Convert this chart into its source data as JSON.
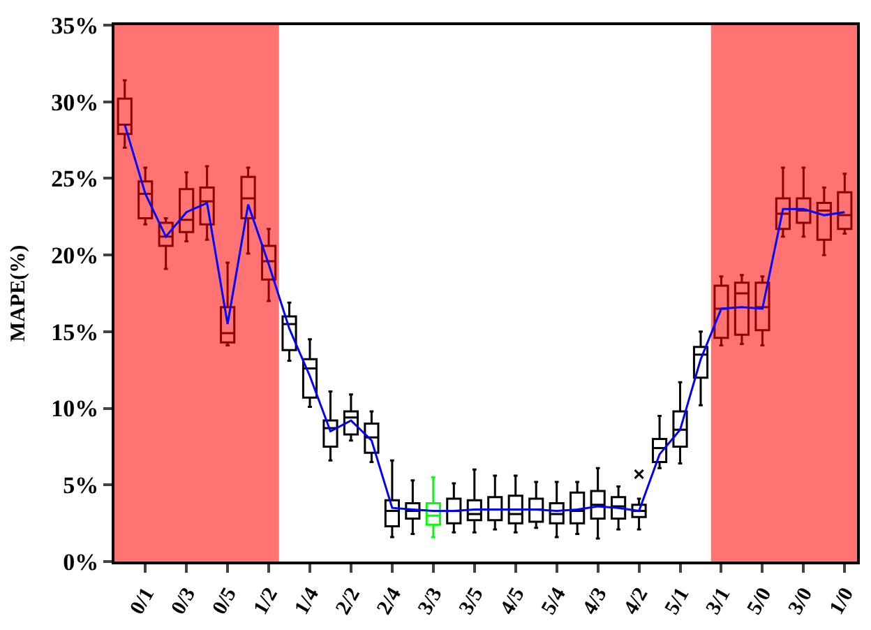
{
  "chart_data": {
    "type": "box",
    "ylabel": "MAPE(%)",
    "categories": [
      null,
      "0/1",
      null,
      "0/3",
      null,
      "0/5",
      null,
      "1/2",
      null,
      "1/4",
      null,
      "2/2",
      null,
      "2/4",
      null,
      "3/3",
      null,
      "3/5",
      null,
      "4/5",
      null,
      "5/4",
      null,
      "4/3",
      null,
      "4/2",
      null,
      "5/1",
      null,
      "3/1",
      null,
      "5/0",
      null,
      "3/0",
      null,
      "1/0"
    ],
    "boxes": [
      {
        "low": 27.0,
        "q1": 27.9,
        "median": 28.5,
        "q3": 30.2,
        "high": 31.4
      },
      {
        "low": 22.0,
        "q1": 22.4,
        "median": 24.0,
        "q3": 24.8,
        "high": 25.7
      },
      {
        "low": 19.1,
        "q1": 20.6,
        "median": 21.2,
        "q3": 22.1,
        "high": 22.4
      },
      {
        "low": 20.9,
        "q1": 21.5,
        "median": 22.3,
        "q3": 24.3,
        "high": 25.4
      },
      {
        "low": 21.0,
        "q1": 22.0,
        "median": 23.5,
        "q3": 24.4,
        "high": 25.8
      },
      {
        "low": 14.1,
        "q1": 14.3,
        "median": 14.9,
        "q3": 16.6,
        "high": 19.5
      },
      {
        "low": 20.1,
        "q1": 22.4,
        "median": 23.7,
        "q3": 25.1,
        "high": 25.7
      },
      {
        "low": 17.0,
        "q1": 18.4,
        "median": 19.6,
        "q3": 20.6,
        "high": 21.7
      },
      {
        "low": 13.1,
        "q1": 13.8,
        "median": 15.5,
        "q3": 16.0,
        "high": 16.9
      },
      {
        "low": 10.1,
        "q1": 10.7,
        "median": 12.6,
        "q3": 13.2,
        "high": 14.5
      },
      {
        "low": 6.6,
        "q1": 7.5,
        "median": 8.7,
        "q3": 9.2,
        "high": 11.1
      },
      {
        "low": 7.9,
        "q1": 8.3,
        "median": 9.4,
        "q3": 9.8,
        "high": 10.9
      },
      {
        "low": 6.5,
        "q1": 7.1,
        "median": 8.1,
        "q3": 9.0,
        "high": 9.8
      },
      {
        "low": 1.6,
        "q1": 2.3,
        "median": 3.3,
        "q3": 4.0,
        "high": 6.6
      },
      {
        "low": 1.8,
        "q1": 2.8,
        "median": 3.3,
        "q3": 3.8,
        "high": 5.3
      },
      {
        "low": 1.6,
        "q1": 2.4,
        "median": 3.0,
        "q3": 3.8,
        "high": 5.5
      },
      {
        "low": 1.9,
        "q1": 2.5,
        "median": 3.3,
        "q3": 4.1,
        "high": 5.1
      },
      {
        "low": 1.9,
        "q1": 2.7,
        "median": 3.1,
        "q3": 4.0,
        "high": 6.0
      },
      {
        "low": 2.1,
        "q1": 2.7,
        "median": 3.4,
        "q3": 4.2,
        "high": 5.6
      },
      {
        "low": 1.9,
        "q1": 2.5,
        "median": 3.1,
        "q3": 4.3,
        "high": 5.6
      },
      {
        "low": 2.2,
        "q1": 2.6,
        "median": 3.4,
        "q3": 4.1,
        "high": 5.2
      },
      {
        "low": 1.6,
        "q1": 2.5,
        "median": 3.1,
        "q3": 3.8,
        "high": 5.2
      },
      {
        "low": 1.8,
        "q1": 2.5,
        "median": 3.3,
        "q3": 4.5,
        "high": 5.2
      },
      {
        "low": 1.5,
        "q1": 2.8,
        "median": 3.7,
        "q3": 4.6,
        "high": 6.1
      },
      {
        "low": 2.1,
        "q1": 2.8,
        "median": 3.6,
        "q3": 4.2,
        "high": 4.9
      },
      {
        "low": 2.1,
        "q1": 2.9,
        "median": 3.3,
        "q3": 3.7,
        "high": 4.1,
        "outliers": [
          5.7
        ]
      },
      {
        "low": 6.1,
        "q1": 6.5,
        "median": 7.4,
        "q3": 8.0,
        "high": 9.5
      },
      {
        "low": 6.4,
        "q1": 7.5,
        "median": 8.6,
        "q3": 9.8,
        "high": 11.7
      },
      {
        "low": 10.2,
        "q1": 12.0,
        "median": 13.5,
        "q3": 14.0,
        "high": 15.0
      },
      {
        "low": 14.1,
        "q1": 14.6,
        "median": 16.5,
        "q3": 18.0,
        "high": 18.6
      },
      {
        "low": 14.2,
        "q1": 14.8,
        "median": 17.5,
        "q3": 18.2,
        "high": 18.7
      },
      {
        "low": 14.1,
        "q1": 15.1,
        "median": 16.6,
        "q3": 18.2,
        "high": 18.6
      },
      {
        "low": 21.2,
        "q1": 21.7,
        "median": 22.7,
        "q3": 23.7,
        "high": 25.7
      },
      {
        "low": 21.2,
        "q1": 22.1,
        "median": 22.9,
        "q3": 23.7,
        "high": 25.7
      },
      {
        "low": 20.0,
        "q1": 21.0,
        "median": 22.9,
        "q3": 23.4,
        "high": 24.4
      },
      {
        "low": 21.4,
        "q1": 21.7,
        "median": 22.6,
        "q3": 24.1,
        "high": 25.3
      }
    ],
    "colors": [
      "#8c0000",
      "#8c0000",
      "#8c0000",
      "#8c0000",
      "#8c0000",
      "#8c0000",
      "#8c0000",
      "#8c0000",
      "#000000",
      "#000000",
      "#000000",
      "#000000",
      "#000000",
      "#000000",
      "#000000",
      "#00ff00",
      "#000000",
      "#000000",
      "#000000",
      "#000000",
      "#000000",
      "#000000",
      "#000000",
      "#000000",
      "#000000",
      "#000000",
      "#000000",
      "#000000",
      "#000000",
      "#8c0000",
      "#8c0000",
      "#8c0000",
      "#8c0000",
      "#8c0000",
      "#8c0000",
      "#8c0000"
    ],
    "series": [
      {
        "type": "line",
        "color": "#0000ff",
        "values": [
          28.5,
          24.0,
          21.2,
          22.8,
          23.4,
          15.5,
          23.3,
          19.4,
          15.2,
          12.1,
          8.5,
          9.2,
          7.9,
          3.5,
          3.4,
          3.3,
          3.3,
          3.4,
          3.4,
          3.4,
          3.4,
          3.3,
          3.4,
          3.6,
          3.5,
          3.3,
          7.0,
          8.6,
          13.2,
          16.5,
          16.6,
          16.5,
          23.0,
          23.0,
          22.6,
          22.8
        ]
      }
    ],
    "ylim": [
      0,
      35
    ],
    "yticks": [
      {
        "value": 0,
        "label": "0%"
      },
      {
        "value": 5,
        "label": "5%"
      },
      {
        "value": 10,
        "label": "10%"
      },
      {
        "value": 15,
        "label": "15%"
      },
      {
        "value": 20,
        "label": "20%"
      },
      {
        "value": 25,
        "label": "25%"
      },
      {
        "value": 30,
        "label": "30%"
      },
      {
        "value": 35,
        "label": "35%"
      }
    ],
    "grid": false
  }
}
